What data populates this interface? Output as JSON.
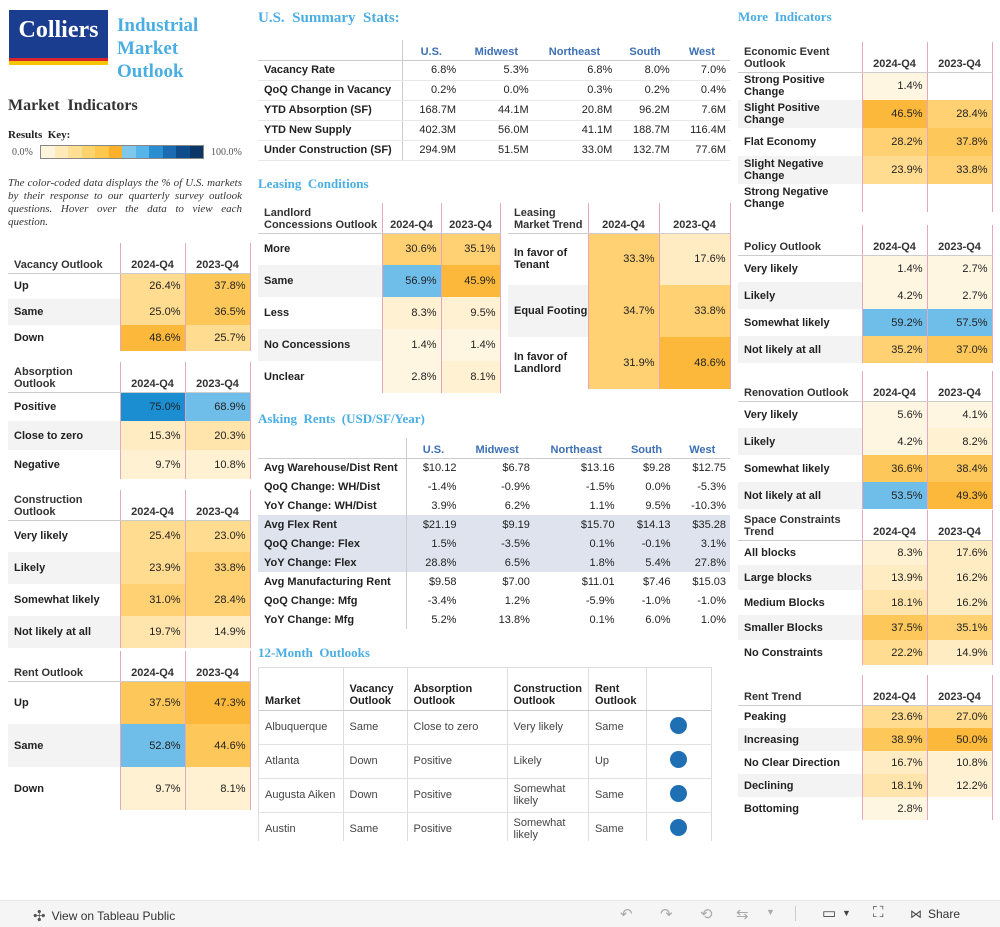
{
  "brand": {
    "logo_text": "Colliers",
    "title_lines": [
      "Industrial",
      "Market",
      "Outlook"
    ]
  },
  "left": {
    "market_indicators": "Market  Indicators",
    "results_key": "Results  Key:",
    "key_min": "0.0%",
    "key_max": "100.0%",
    "key_colors": [
      "#fff5dc",
      "#ffeab8",
      "#ffdf93",
      "#ffd46f",
      "#ffc84c",
      "#fab02a",
      "#7fc6ec",
      "#56b4e9",
      "#2a8fd1",
      "#1a6bb0",
      "#0f4c8c",
      "#0a3566"
    ],
    "description": "The color-coded data displays the % of U.S. markets by their response to our quarterly survey outlook questions. Hover over the data to view each question."
  },
  "colors": {
    "scale": [
      "#fff5dc",
      "#ffeab8",
      "#ffdf93",
      "#ffd46f",
      "#ffc84c",
      "#fab02a",
      "#7fc6ec",
      "#56b4e9",
      "#2a8fd1"
    ]
  },
  "vacancy": {
    "title": "Vacancy Outlook",
    "c1": "2024-Q4",
    "c2": "2023-Q4",
    "rows": [
      {
        "l": "Up",
        "a": "26.4%",
        "b": "37.8%"
      },
      {
        "l": "Same",
        "a": "25.0%",
        "b": "36.5%"
      },
      {
        "l": "Down",
        "a": "48.6%",
        "b": "25.7%"
      }
    ]
  },
  "absorption": {
    "title": "Absorption Outlook",
    "c1": "2024-Q4",
    "c2": "2023-Q4",
    "rows": [
      {
        "l": "Positive",
        "a": "75.0%",
        "b": "68.9%"
      },
      {
        "l": "Close to zero",
        "a": "15.3%",
        "b": "20.3%"
      },
      {
        "l": "Negative",
        "a": "9.7%",
        "b": "10.8%"
      }
    ]
  },
  "construction": {
    "title": "Construction Outlook",
    "c1": "2024-Q4",
    "c2": "2023-Q4",
    "rows": [
      {
        "l": "Very likely",
        "a": "25.4%",
        "b": "23.0%"
      },
      {
        "l": "Likely",
        "a": "23.9%",
        "b": "33.8%"
      },
      {
        "l": "Somewhat likely",
        "a": "31.0%",
        "b": "28.4%"
      },
      {
        "l": "Not likely at all",
        "a": "19.7%",
        "b": "14.9%"
      }
    ]
  },
  "rent_outlook": {
    "title": "Rent Outlook",
    "c1": "2024-Q4",
    "c2": "2023-Q4",
    "rows": [
      {
        "l": "Up",
        "a": "37.5%",
        "b": "47.3%"
      },
      {
        "l": "Same",
        "a": "52.8%",
        "b": "44.6%"
      },
      {
        "l": "Down",
        "a": "9.7%",
        "b": "8.1%"
      }
    ]
  },
  "summary": {
    "title": "U.S.  Summary  Stats:",
    "cols": [
      "U.S.",
      "Midwest",
      "Northeast",
      "South",
      "West"
    ],
    "rows": [
      {
        "l": "Vacancy Rate",
        "v": [
          "6.8%",
          "5.3%",
          "6.8%",
          "8.0%",
          "7.0%"
        ]
      },
      {
        "l": "QoQ Change in Vacancy",
        "v": [
          "0.2%",
          "0.0%",
          "0.3%",
          "0.2%",
          "0.4%"
        ]
      },
      {
        "l": "YTD Absorption (SF)",
        "v": [
          "168.7M",
          "44.1M",
          "20.8M",
          "96.2M",
          "7.6M"
        ]
      },
      {
        "l": "YTD New Supply",
        "v": [
          "402.3M",
          "56.0M",
          "41.1M",
          "188.7M",
          "116.4M"
        ]
      },
      {
        "l": "Under Construction (SF)",
        "v": [
          "294.9M",
          "51.5M",
          "33.0M",
          "132.7M",
          "77.6M"
        ]
      }
    ]
  },
  "leasing": {
    "title": "Leasing  Conditions",
    "concessions": {
      "title": "Landlord Concessions Outlook",
      "c1": "2024-Q4",
      "c2": "2023-Q4",
      "rows": [
        {
          "l": "More",
          "a": "30.6%",
          "b": "35.1%"
        },
        {
          "l": "Same",
          "a": "56.9%",
          "b": "45.9%"
        },
        {
          "l": "Less",
          "a": "8.3%",
          "b": "9.5%"
        },
        {
          "l": "No Concessions",
          "a": "1.4%",
          "b": "1.4%"
        },
        {
          "l": "Unclear",
          "a": "2.8%",
          "b": "8.1%"
        }
      ]
    },
    "trend": {
      "title": "Leasing Market Trend",
      "c1": "2024-Q4",
      "c2": "2023-Q4",
      "rows": [
        {
          "l": "In favor of Tenant",
          "a": "33.3%",
          "b": "17.6%"
        },
        {
          "l": "Equal Footing",
          "a": "34.7%",
          "b": "33.8%"
        },
        {
          "l": "In favor of Landlord",
          "a": "31.9%",
          "b": "48.6%"
        }
      ]
    }
  },
  "rents": {
    "title": "Asking  Rents  (USD/SF/Year)",
    "cols": [
      "U.S.",
      "Midwest",
      "Northeast",
      "South",
      "West"
    ],
    "rows": [
      {
        "l": "Avg Warehouse/Dist Rent",
        "v": [
          "$10.12",
          "$6.78",
          "$13.16",
          "$9.28",
          "$12.75"
        ],
        "hl": false
      },
      {
        "l": "QoQ Change: WH/Dist",
        "v": [
          "-1.4%",
          "-0.9%",
          "-1.5%",
          "0.0%",
          "-5.3%"
        ],
        "hl": false
      },
      {
        "l": "YoY Change: WH/Dist",
        "v": [
          "3.9%",
          "6.2%",
          "1.1%",
          "9.5%",
          "-10.3%"
        ],
        "hl": false
      },
      {
        "l": "Avg Flex Rent",
        "v": [
          "$21.19",
          "$9.19",
          "$15.70",
          "$14.13",
          "$35.28"
        ],
        "hl": true
      },
      {
        "l": "QoQ Change: Flex",
        "v": [
          "1.5%",
          "-3.5%",
          "0.1%",
          "-0.1%",
          "3.1%"
        ],
        "hl": true
      },
      {
        "l": "YoY Change: Flex",
        "v": [
          "28.8%",
          "6.5%",
          "1.8%",
          "5.4%",
          "27.8%"
        ],
        "hl": true
      },
      {
        "l": "Avg Manufacturing Rent",
        "v": [
          "$9.58",
          "$7.00",
          "$11.01",
          "$7.46",
          "$15.03"
        ],
        "hl": false
      },
      {
        "l": "QoQ Change: Mfg",
        "v": [
          "-3.4%",
          "1.2%",
          "-5.9%",
          "-1.0%",
          "-1.0%"
        ],
        "hl": false
      },
      {
        "l": "YoY Change: Mfg",
        "v": [
          "5.2%",
          "13.8%",
          "0.1%",
          "6.0%",
          "1.0%"
        ],
        "hl": false
      }
    ]
  },
  "outlooks": {
    "title": "12-Month  Outlooks",
    "cols": [
      "Market",
      "Vacancy Outlook",
      "Absorption Outlook",
      "Construction Outlook",
      "Rent Outlook"
    ],
    "rows": [
      {
        "m": "Albuquerque",
        "v": "Same",
        "a": "Close to zero",
        "c": "Very likely",
        "r": "Same"
      },
      {
        "m": "Atlanta",
        "v": "Down",
        "a": "Positive",
        "c": "Likely",
        "r": "Up"
      },
      {
        "m": "Augusta Aiken",
        "v": "Down",
        "a": "Positive",
        "c": "Somewhat likely",
        "r": "Same"
      },
      {
        "m": "Austin",
        "v": "Same",
        "a": "Positive",
        "c": "Somewhat likely",
        "r": "Same"
      }
    ]
  },
  "more": {
    "title": "More  Indicators",
    "economic": {
      "title": "Economic Event Outlook",
      "c1": "2024-Q4",
      "c2": "2023-Q4",
      "rows": [
        {
          "l": "Strong Positive Change",
          "a": "1.4%",
          "b": ""
        },
        {
          "l": "Slight Positive Change",
          "a": "46.5%",
          "b": "28.4%"
        },
        {
          "l": "Flat Economy",
          "a": "28.2%",
          "b": "37.8%"
        },
        {
          "l": "Slight Negative Change",
          "a": "23.9%",
          "b": "33.8%"
        },
        {
          "l": "Strong Negative Change",
          "a": "",
          "b": ""
        }
      ]
    },
    "policy": {
      "title": "Policy Outlook",
      "c1": "2024-Q4",
      "c2": "2023-Q4",
      "rows": [
        {
          "l": "Very likely",
          "a": "1.4%",
          "b": "2.7%"
        },
        {
          "l": "Likely",
          "a": "4.2%",
          "b": "2.7%"
        },
        {
          "l": "Somewhat likely",
          "a": "59.2%",
          "b": "57.5%"
        },
        {
          "l": "Not likely at all",
          "a": "35.2%",
          "b": "37.0%"
        }
      ]
    },
    "renovation": {
      "title": "Renovation Outlook",
      "c1": "2024-Q4",
      "c2": "2023-Q4",
      "rows": [
        {
          "l": "Very likely",
          "a": "5.6%",
          "b": "4.1%"
        },
        {
          "l": "Likely",
          "a": "4.2%",
          "b": "8.2%"
        },
        {
          "l": "Somewhat likely",
          "a": "36.6%",
          "b": "38.4%"
        },
        {
          "l": "Not likely at all",
          "a": "53.5%",
          "b": "49.3%"
        }
      ]
    },
    "space": {
      "title": "Space Constraints Trend",
      "c1": "2024-Q4",
      "c2": "2023-Q4",
      "rows": [
        {
          "l": "All blocks",
          "a": "8.3%",
          "b": "17.6%"
        },
        {
          "l": "Large blocks",
          "a": "13.9%",
          "b": "16.2%"
        },
        {
          "l": "Medium Blocks",
          "a": "18.1%",
          "b": "16.2%"
        },
        {
          "l": "Smaller Blocks",
          "a": "37.5%",
          "b": "35.1%"
        },
        {
          "l": "No Constraints",
          "a": "22.2%",
          "b": "14.9%"
        }
      ]
    },
    "rent_trend": {
      "title": "Rent Trend",
      "c1": "2024-Q4",
      "c2": "2023-Q4",
      "rows": [
        {
          "l": "Peaking",
          "a": "23.6%",
          "b": "27.0%"
        },
        {
          "l": "Increasing",
          "a": "38.9%",
          "b": "50.0%"
        },
        {
          "l": "No Clear Direction",
          "a": "16.7%",
          "b": "10.8%"
        },
        {
          "l": "Declining",
          "a": "18.1%",
          "b": "12.2%"
        },
        {
          "l": "Bottoming",
          "a": "2.8%",
          "b": ""
        }
      ]
    }
  },
  "footer": {
    "view_label": "View on Tableau Public",
    "share_label": "Share"
  }
}
